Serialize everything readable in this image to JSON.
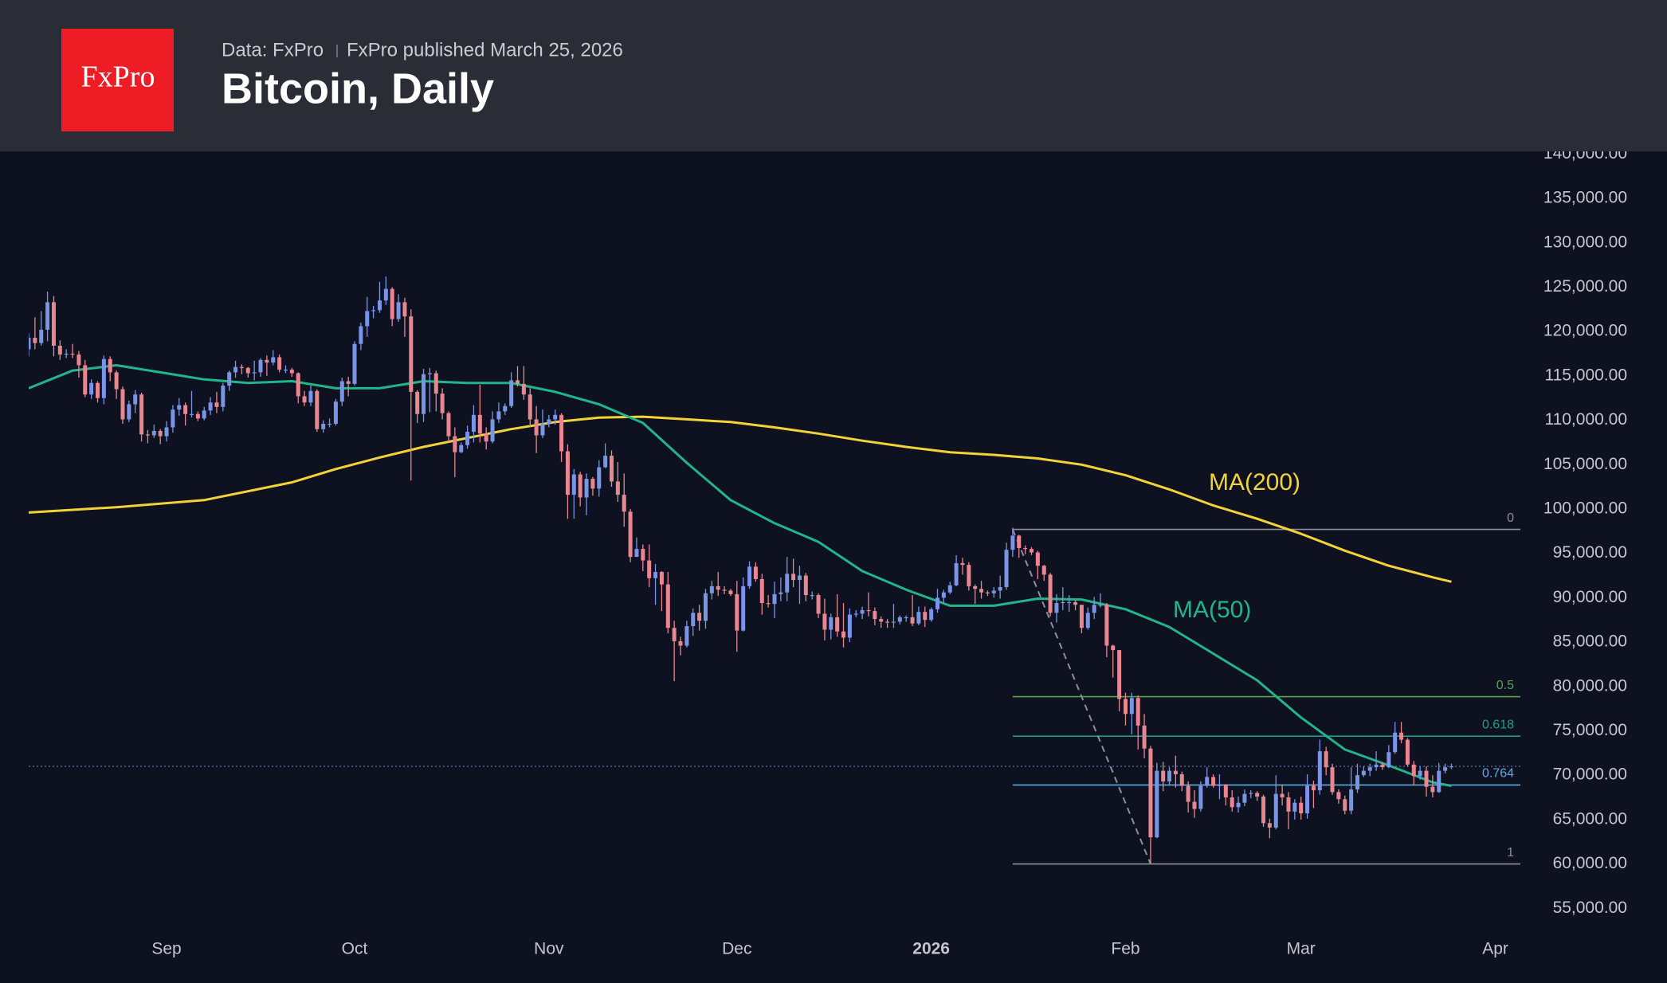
{
  "header": {
    "logo": "FxPro",
    "source": "Data: FxPro",
    "published": "FxPro published March 25, 2026",
    "title": "Bitcoin, Daily"
  },
  "chart_data": {
    "type": "candlestick",
    "xlim": [
      0,
      238
    ],
    "xticks": [
      {
        "value": 22,
        "label": "Sep"
      },
      {
        "value": 52,
        "label": "Oct"
      },
      {
        "value": 83,
        "label": "Nov"
      },
      {
        "value": 113,
        "label": "Dec"
      },
      {
        "value": 144,
        "label": "2026",
        "bold": true
      },
      {
        "value": 175,
        "label": "Feb"
      },
      {
        "value": 203,
        "label": "Mar"
      },
      {
        "value": 234,
        "label": "Apr"
      }
    ],
    "ylim": [
      52600,
      140300
    ],
    "yticks": [
      {
        "value": 55000,
        "label": "55,000.00"
      },
      {
        "value": 60000,
        "label": "60,000.00"
      },
      {
        "value": 65000,
        "label": "65,000.00"
      },
      {
        "value": 70000,
        "label": "70,000.00"
      },
      {
        "value": 75000,
        "label": "75,000.00"
      },
      {
        "value": 80000,
        "label": "80,000.00"
      },
      {
        "value": 85000,
        "label": "85,000.00"
      },
      {
        "value": 90000,
        "label": "90,000.00"
      },
      {
        "value": 95000,
        "label": "95,000.00"
      },
      {
        "value": 100000,
        "label": "100,000.00"
      },
      {
        "value": 105000,
        "label": "105,000.00"
      },
      {
        "value": 110000,
        "label": "110,000.00"
      },
      {
        "value": 115000,
        "label": "115,000.00"
      },
      {
        "value": 120000,
        "label": "120,000.00"
      },
      {
        "value": 125000,
        "label": "125,000.00"
      },
      {
        "value": 130000,
        "label": "130,000.00"
      },
      {
        "value": 135000,
        "label": "135,000.00"
      },
      {
        "value": 140000,
        "label": "140,000.00"
      }
    ],
    "grid": false,
    "candles": {
      "up_color": "#7a94e6",
      "down_color": "#e98790",
      "last_price_color": "#5b6fb0",
      "open": [
        118000,
        119300,
        118700,
        120200,
        123300,
        118400,
        117400,
        117500,
        117400,
        116200,
        112900,
        114200,
        112500,
        116900,
        115400,
        113500,
        110100,
        111800,
        112900,
        108400,
        108300,
        108800,
        108200,
        109200,
        111200,
        111700,
        110700,
        110700,
        110200,
        111100,
        112000,
        111500,
        113900,
        115400,
        116000,
        115900,
        115300,
        115400,
        116800,
        116500,
        117100,
        115700,
        115700,
        115300,
        112700,
        112000,
        113300,
        109000,
        109600,
        109600,
        112100,
        114400,
        114100,
        118600,
        120600,
        122300,
        122400,
        123500,
        124800,
        121400,
        123300,
        121700,
        113200,
        110700,
        115200,
        115300,
        113000,
        110800,
        108200,
        106400,
        107200,
        108700,
        110600,
        108500,
        107600,
        110100,
        111000,
        111600,
        114500,
        114100,
        112900,
        110100,
        108300,
        109600,
        110100,
        110600,
        106500,
        101600,
        103900,
        101300,
        103400,
        102300,
        104700,
        106000,
        103100,
        101600,
        99700,
        94600,
        95500,
        94200,
        92200,
        92900,
        91500,
        86600,
        85100,
        84600,
        86800,
        88300,
        87400,
        90500,
        91300,
        90900,
        90800,
        90400,
        86300,
        91300,
        93500,
        92100,
        89400,
        89300,
        90400,
        90600,
        92700,
        92000,
        92500,
        90300,
        90300,
        88200,
        86400,
        87800,
        86200,
        85500,
        88100,
        88200,
        88600,
        88500,
        87600,
        87300,
        87200,
        87300,
        87800,
        87800,
        87100,
        88400,
        87500,
        88700,
        90000,
        90600,
        91400,
        93900,
        93700,
        91300,
        91000,
        90600,
        90500,
        90800,
        91200,
        95400,
        97000,
        95600,
        95500,
        95100,
        93600,
        92600,
        88300,
        89400,
        89500,
        89500,
        89200,
        86600,
        88300,
        89200,
        89200,
        84600,
        84100,
        78600,
        76900,
        78700,
        75600,
        73000,
        63000,
        70500,
        69300,
        70500,
        70100,
        68800,
        67000,
        66200,
        68800,
        69800,
        68800,
        68900,
        67500,
        66400,
        66900,
        67900,
        68000,
        67600,
        64600,
        64100,
        67900,
        67500,
        65900,
        66900,
        65700,
        68800,
        68300,
        72700,
        70900,
        68100,
        67300,
        66000,
        68400,
        70000,
        70500,
        70900,
        71200,
        70900,
        72600,
        74800,
        74000,
        71200,
        69900,
        70500,
        68700,
        68100,
        70500,
        70900
      ],
      "high": [
        119800,
        121600,
        122300,
        124500,
        124000,
        119000,
        118000,
        118600,
        117800,
        116800,
        114600,
        114400,
        117300,
        117200,
        115600,
        113800,
        112200,
        113400,
        113100,
        108900,
        109500,
        109000,
        109900,
        111700,
        112500,
        112000,
        113300,
        111000,
        111500,
        112600,
        113200,
        114200,
        115600,
        116700,
        116300,
        116000,
        116700,
        117000,
        117300,
        117900,
        117400,
        116200,
        115900,
        115400,
        113300,
        113900,
        113500,
        110000,
        110200,
        112400,
        114800,
        114900,
        118900,
        121000,
        123900,
        122900,
        125600,
        126200,
        125000,
        124200,
        123800,
        122500,
        113400,
        115800,
        115900,
        115600,
        113600,
        111000,
        109200,
        107500,
        109400,
        111700,
        114000,
        109200,
        111000,
        112000,
        111900,
        115400,
        116100,
        116100,
        113600,
        111600,
        111200,
        110600,
        111200,
        110800,
        107300,
        104500,
        104200,
        104000,
        103600,
        105500,
        107400,
        106600,
        105300,
        104000,
        100000,
        96800,
        96000,
        96000,
        93800,
        93000,
        92900,
        87400,
        85600,
        87400,
        88800,
        89200,
        91000,
        91900,
        92900,
        91300,
        91000,
        91900,
        92300,
        94100,
        94000,
        92700,
        90300,
        91800,
        92300,
        94600,
        94400,
        93600,
        92800,
        90700,
        90500,
        89900,
        88200,
        90400,
        89400,
        88800,
        88600,
        89000,
        90600,
        88900,
        87900,
        87600,
        89300,
        88000,
        88000,
        90300,
        89000,
        89000,
        88900,
        91000,
        90900,
        91800,
        94800,
        94500,
        94000,
        91500,
        91900,
        90800,
        91200,
        92500,
        96200,
        97900,
        97100,
        95900,
        95700,
        95300,
        93700,
        92800,
        90400,
        91200,
        90300,
        89700,
        89200,
        88900,
        90100,
        90500,
        89400,
        84700,
        84100,
        79300,
        79300,
        79000,
        76900,
        73300,
        71400,
        71500,
        70900,
        72200,
        70400,
        69300,
        68300,
        69300,
        70900,
        70100,
        70100,
        69000,
        68300,
        67600,
        68400,
        68300,
        68200,
        67800,
        65100,
        70000,
        68900,
        68100,
        67300,
        67600,
        70100,
        69400,
        74000,
        73200,
        71300,
        68400,
        67700,
        70900,
        71300,
        71000,
        71300,
        72700,
        71500,
        73400,
        76000,
        76000,
        74200,
        71600,
        71000,
        71000,
        70000,
        71400,
        71300,
        71300
      ],
      "low": [
        117200,
        118000,
        118400,
        118900,
        117200,
        116800,
        117000,
        117000,
        114800,
        112600,
        112400,
        112000,
        111800,
        114400,
        112400,
        109600,
        109800,
        110800,
        107600,
        107400,
        108000,
        107300,
        107600,
        108600,
        110500,
        109400,
        110300,
        109900,
        110000,
        110600,
        110800,
        111000,
        113300,
        114800,
        115200,
        114800,
        114500,
        114900,
        115000,
        116200,
        115400,
        115300,
        114900,
        111900,
        111600,
        111600,
        108700,
        108600,
        109200,
        109400,
        111600,
        112700,
        113900,
        117900,
        119400,
        121500,
        122100,
        123000,
        120600,
        121100,
        119400,
        103200,
        109700,
        109800,
        110900,
        111000,
        110100,
        107500,
        103600,
        106300,
        106800,
        107500,
        107500,
        106700,
        107400,
        109700,
        110600,
        111400,
        113800,
        112300,
        109200,
        106300,
        108000,
        109200,
        109500,
        105300,
        98900,
        98900,
        100300,
        99300,
        101500,
        101400,
        104600,
        102500,
        100800,
        98000,
        94000,
        94600,
        93000,
        91200,
        89200,
        88500,
        86000,
        80600,
        83500,
        84400,
        85700,
        86300,
        86500,
        89800,
        90200,
        90400,
        90200,
        83900,
        86200,
        91000,
        91800,
        88100,
        88900,
        87700,
        89600,
        89600,
        91200,
        89300,
        89600,
        89800,
        87700,
        85200,
        85300,
        85600,
        84400,
        85000,
        87800,
        87600,
        87900,
        86900,
        86600,
        86600,
        86600,
        87000,
        87300,
        86800,
        86900,
        86700,
        87300,
        88300,
        89400,
        90400,
        91300,
        92600,
        90800,
        89300,
        89900,
        90200,
        90000,
        89900,
        90900,
        94600,
        94500,
        94900,
        94800,
        92100,
        91900,
        87900,
        87200,
        88600,
        88400,
        88600,
        86000,
        86400,
        87600,
        88900,
        83300,
        81000,
        77200,
        75600,
        74600,
        72900,
        71900,
        60100,
        62900,
        68200,
        68900,
        68600,
        68200,
        65800,
        65200,
        65900,
        68600,
        68600,
        67300,
        66600,
        65900,
        65800,
        66500,
        67400,
        67100,
        64200,
        62900,
        63900,
        66600,
        63900,
        65000,
        65000,
        65100,
        66300,
        67800,
        70000,
        67800,
        66800,
        65600,
        65600,
        68000,
        69800,
        69900,
        70500,
        70600,
        70800,
        72400,
        73600,
        71000,
        68900,
        69500,
        67600,
        67500,
        68000,
        70200,
        70700
      ],
      "close": [
        119300,
        118700,
        120200,
        123300,
        118400,
        117400,
        117500,
        117400,
        116200,
        112900,
        114200,
        112500,
        116900,
        115400,
        113500,
        110100,
        111800,
        112900,
        108400,
        108300,
        108800,
        108200,
        109200,
        111200,
        111700,
        110700,
        110700,
        110200,
        111100,
        112000,
        111500,
        113900,
        115400,
        116000,
        115900,
        115300,
        115400,
        116800,
        116500,
        117100,
        115700,
        115700,
        115300,
        112700,
        112000,
        113300,
        109000,
        109600,
        109600,
        112100,
        114400,
        114100,
        118600,
        120600,
        122300,
        122400,
        123500,
        124800,
        121400,
        123300,
        121700,
        113200,
        110700,
        115200,
        115300,
        113000,
        110800,
        108200,
        106400,
        107200,
        108700,
        110600,
        108500,
        107600,
        110100,
        111000,
        111600,
        114500,
        114100,
        112900,
        110100,
        108300,
        109600,
        110100,
        110600,
        106500,
        101600,
        103900,
        101300,
        103400,
        102300,
        104700,
        106000,
        103100,
        101600,
        99700,
        94600,
        95500,
        94200,
        92200,
        92900,
        91500,
        86600,
        85100,
        84600,
        86800,
        88300,
        87400,
        90500,
        91300,
        90900,
        90800,
        90400,
        86300,
        91300,
        93500,
        92100,
        89400,
        89300,
        90400,
        90600,
        92700,
        92000,
        92500,
        90300,
        90300,
        88200,
        86400,
        87800,
        86200,
        85500,
        88100,
        88200,
        88600,
        88500,
        87600,
        87300,
        87200,
        87300,
        87800,
        87800,
        87100,
        88400,
        87500,
        88700,
        90000,
        90600,
        91400,
        93900,
        93700,
        91300,
        91000,
        90600,
        90500,
        90800,
        91200,
        95400,
        97000,
        95600,
        95500,
        95100,
        93600,
        92600,
        88300,
        89400,
        89500,
        89500,
        89200,
        86600,
        88300,
        89200,
        89200,
        84600,
        84100,
        78600,
        76900,
        78700,
        75600,
        73000,
        63000,
        70500,
        69300,
        70500,
        70100,
        68800,
        67000,
        66200,
        68800,
        69800,
        68800,
        68900,
        67500,
        66400,
        66900,
        67900,
        68000,
        67600,
        64600,
        64100,
        67900,
        67500,
        65900,
        66900,
        65700,
        68800,
        68300,
        72700,
        70900,
        68100,
        67300,
        66000,
        68400,
        70000,
        70500,
        70900,
        71200,
        70900,
        72600,
        74800,
        74000,
        71200,
        69900,
        70500,
        68700,
        68100,
        70500,
        70900,
        71000
      ]
    },
    "lines": [
      {
        "name": "MA(200)",
        "color": "#f2d338",
        "x": [
          0,
          14,
          28,
          42,
          49,
          56,
          63,
          70,
          77,
          84,
          91,
          98,
          105,
          112,
          119,
          126,
          133,
          140,
          147,
          154,
          161,
          168,
          175,
          182,
          189,
          196,
          203,
          210,
          217,
          224,
          227
        ],
        "values": [
          99600,
          100200,
          101000,
          103000,
          104500,
          105800,
          107000,
          108000,
          109000,
          109800,
          110300,
          110400,
          110100,
          109800,
          109200,
          108500,
          107700,
          107000,
          106400,
          106100,
          105700,
          105000,
          103800,
          102200,
          100400,
          98900,
          97200,
          95300,
          93600,
          92300,
          91800
        ]
      },
      {
        "name": "MA(50)",
        "color": "#22b48a",
        "x": [
          0,
          7,
          14,
          21,
          28,
          35,
          42,
          49,
          56,
          63,
          70,
          77,
          84,
          91,
          98,
          105,
          112,
          119,
          126,
          133,
          140,
          147,
          154,
          161,
          168,
          175,
          182,
          189,
          196,
          203,
          210,
          217,
          224,
          227
        ],
        "values": [
          113600,
          115600,
          116200,
          115400,
          114600,
          114200,
          114400,
          113600,
          113600,
          114400,
          114200,
          114200,
          113200,
          111800,
          109700,
          105200,
          101000,
          98400,
          96300,
          93000,
          90900,
          89100,
          89100,
          89900,
          89800,
          88700,
          86700,
          83700,
          80700,
          76500,
          72900,
          71100,
          69200,
          68800
        ]
      }
    ],
    "fibonacci": {
      "x": [
        157,
        179
      ],
      "levels": [
        {
          "ratio": 0,
          "price": 97700,
          "color": "#8d909a"
        },
        {
          "ratio": 0.5,
          "price": 78850,
          "color": "#5aa447"
        },
        {
          "ratio": 0.618,
          "price": 74400,
          "color": "#1e9e8c"
        },
        {
          "ratio": 0.764,
          "price": 68900,
          "color": "#5ea9e6"
        },
        {
          "ratio": 1,
          "price": 60000,
          "color": "#8d909a"
        }
      ]
    }
  }
}
